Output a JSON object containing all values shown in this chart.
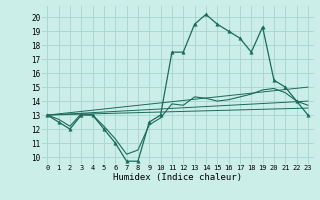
{
  "title": "",
  "xlabel": "Humidex (Indice chaleur)",
  "bg_color": "#cceee8",
  "grid_color": "#aad8d0",
  "line_color": "#1a6b5a",
  "xlim": [
    -0.5,
    23.5
  ],
  "ylim": [
    9.5,
    20.8
  ],
  "xticks": [
    0,
    1,
    2,
    3,
    4,
    5,
    6,
    7,
    8,
    9,
    10,
    11,
    12,
    13,
    14,
    15,
    16,
    17,
    18,
    19,
    20,
    21,
    22,
    23
  ],
  "yticks": [
    10,
    11,
    12,
    13,
    14,
    15,
    16,
    17,
    18,
    19,
    20
  ],
  "main_x": [
    0,
    1,
    2,
    3,
    4,
    5,
    6,
    7,
    8,
    9,
    10,
    11,
    12,
    13,
    14,
    15,
    16,
    17,
    18,
    19,
    20,
    21,
    22,
    23
  ],
  "main_y": [
    13,
    12.5,
    12,
    13,
    13,
    12,
    11,
    9.7,
    9.7,
    12.5,
    13,
    17.5,
    17.5,
    19.5,
    20.2,
    19.5,
    19.0,
    18.5,
    17.5,
    19.3,
    15.5,
    15.0,
    14.0,
    13.0
  ],
  "line1_x": [
    0,
    1,
    2,
    3,
    4,
    5,
    6,
    7,
    8,
    9,
    10,
    11,
    12,
    13,
    14,
    15,
    16,
    17,
    18,
    19,
    20,
    21,
    22,
    23
  ],
  "line1_y": [
    13,
    12.7,
    12.2,
    13.1,
    13.0,
    12.2,
    11.3,
    10.2,
    10.5,
    12.3,
    12.8,
    13.8,
    13.7,
    14.3,
    14.2,
    14.0,
    14.1,
    14.3,
    14.5,
    14.8,
    14.9,
    14.6,
    14.0,
    13.7
  ],
  "line2_x": [
    0,
    23
  ],
  "line2_y": [
    13.0,
    13.5
  ],
  "line3_x": [
    0,
    23
  ],
  "line3_y": [
    13.0,
    15.0
  ],
  "line4_x": [
    0,
    23
  ],
  "line4_y": [
    13.0,
    14.0
  ]
}
